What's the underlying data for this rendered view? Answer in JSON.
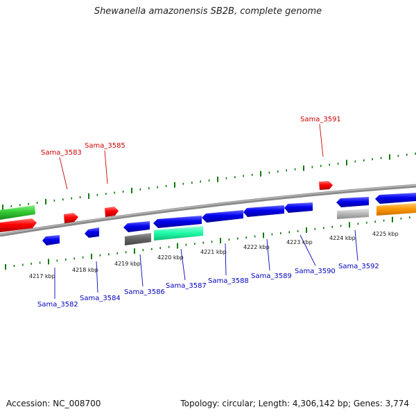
{
  "title": "Shewanella amazonensis SB2B, complete genome",
  "footer": {
    "accession": "Accession: NC_008700",
    "stats": "Topology: circular; Length: 4,306,142 bp; Genes: 3,774"
  },
  "colors": {
    "backbone": "#8a8a8a",
    "forward_gene": "#ff0000",
    "reverse_gene": "#0000ff",
    "tick": "#0a7a0a",
    "forward_label": "#cc0000",
    "reverse_label": "#0000bb",
    "green_feature": "#33cc33",
    "grey_feature": "#666666",
    "aqua_feature": "#22ffaa",
    "silver_feature": "#bbbbbb",
    "orange_feature": "#ff9900"
  },
  "scale_labels": [
    "4217 kbp",
    "4218 kbp",
    "4219 kbp",
    "4220 kbp",
    "4221 kbp",
    "4222 kbp",
    "4223 kbp",
    "4224 kbp",
    "4225 kbp"
  ],
  "forward_gene_labels": [
    "Sama_3583",
    "Sama_3585",
    "Sama_3591"
  ],
  "reverse_gene_labels": [
    "Sama_3582",
    "Sama_3584",
    "Sama_3586",
    "Sama_3587",
    "Sama_3588",
    "Sama_3589",
    "Sama_3590",
    "Sama_3592"
  ]
}
